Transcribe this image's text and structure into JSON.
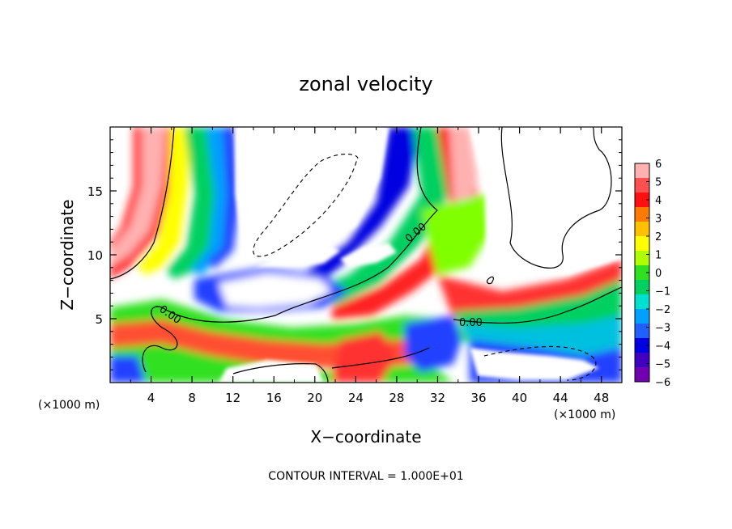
{
  "chart_data": {
    "type": "heatmap",
    "title": "zonal velocity",
    "xlabel": "X−coordinate",
    "ylabel": "Z−coordinate",
    "x_unit_left": "(×1000 m)",
    "x_unit_right": "(×1000 m)",
    "footnote": "CONTOUR INTERVAL = 1.000E+01",
    "xlim": [
      0,
      50
    ],
    "ylim": [
      0,
      20
    ],
    "x_ticks": [
      4,
      8,
      12,
      16,
      20,
      24,
      28,
      32,
      36,
      40,
      44,
      48
    ],
    "y_ticks": [
      5,
      10,
      15
    ],
    "colorbar": {
      "ticks": [
        6,
        5,
        4,
        3,
        2,
        1,
        0,
        -1,
        -2,
        -3,
        -4,
        -5,
        -6
      ],
      "tick_labels": [
        "6",
        "5",
        "4",
        "3",
        "2",
        "1",
        "0",
        "−1",
        "−2",
        "−3",
        "−4",
        "−5",
        "−6"
      ],
      "colors": [
        "#ffb0b0",
        "#ff5050",
        "#ff1010",
        "#ff7a00",
        "#ffc000",
        "#ffff00",
        "#b0ff00",
        "#30e020",
        "#00d060",
        "#00e0d0",
        "#00a0ff",
        "#2060ff",
        "#0000e0",
        "#4000c0",
        "#7000b0"
      ]
    },
    "contour_labels": [
      "0.00",
      "0.00",
      "0.00"
    ],
    "field_regions": [
      {
        "level": 6,
        "desc": "positive band near x=2-6 vertical"
      },
      {
        "level": -5,
        "desc": "negative band"
      },
      {
        "level": 0,
        "desc": "zero contour"
      }
    ]
  }
}
